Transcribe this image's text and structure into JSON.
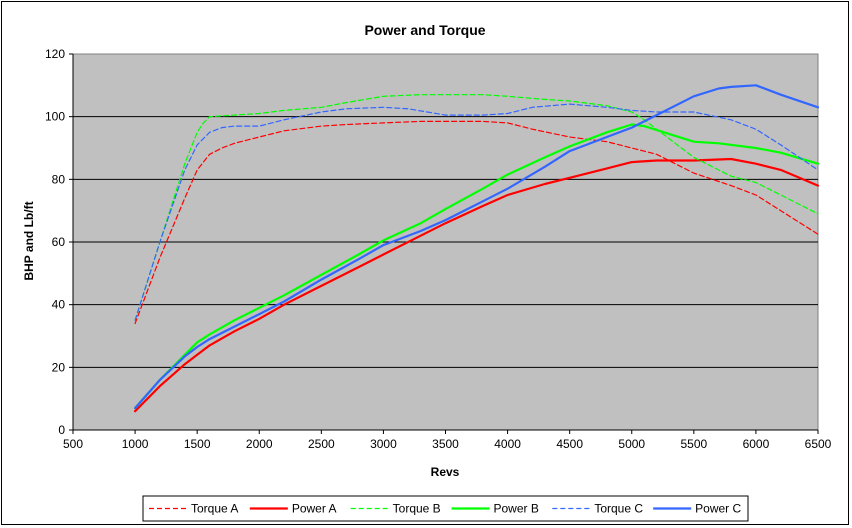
{
  "chart_data": {
    "type": "line",
    "title": "Power and Torque",
    "xlabel": "Revs",
    "ylabel": "BHP and Lb/ft",
    "xlim": [
      500,
      6500
    ],
    "ylim": [
      0,
      120
    ],
    "x_ticks": [
      500,
      1000,
      1500,
      2000,
      2500,
      3000,
      3500,
      4000,
      4500,
      5000,
      5500,
      6000,
      6500
    ],
    "y_ticks": [
      0,
      20,
      40,
      60,
      80,
      100,
      120
    ],
    "grid": "horizontal",
    "legend": "bottom",
    "plot_bg": "#c0c0c0",
    "series": [
      {
        "name": "Torque A",
        "color": "#ff0000",
        "dash": true,
        "x": [
          1000,
          1200,
          1400,
          1500,
          1600,
          1700,
          1800,
          2000,
          2200,
          2500,
          2700,
          3000,
          3300,
          3500,
          3800,
          4000,
          4200,
          4500,
          4800,
          5000,
          5200,
          5500,
          5800,
          6000,
          6200,
          6500
        ],
        "y": [
          34,
          55,
          74,
          83,
          88,
          90,
          91.5,
          93.5,
          95.5,
          97,
          97.5,
          98,
          98.5,
          98.5,
          98.5,
          98,
          96,
          93.5,
          92,
          90,
          88,
          82,
          78,
          75,
          70,
          62.5
        ]
      },
      {
        "name": "Power A",
        "color": "#ff0000",
        "dash": false,
        "x": [
          1000,
          1200,
          1400,
          1500,
          1600,
          1800,
          2000,
          2200,
          2500,
          2800,
          3000,
          3300,
          3500,
          3800,
          4000,
          4300,
          4500,
          4800,
          5000,
          5200,
          5500,
          5800,
          6000,
          6200,
          6500
        ],
        "y": [
          6,
          14,
          21,
          24,
          27,
          31.5,
          35.5,
          40,
          46,
          52,
          56,
          62,
          66,
          71.5,
          75,
          78.5,
          80.5,
          83.5,
          85.5,
          86,
          86,
          86.5,
          85,
          83,
          78
        ]
      },
      {
        "name": "Torque B",
        "color": "#00ff00",
        "dash": true,
        "x": [
          1000,
          1200,
          1400,
          1500,
          1550,
          1600,
          1800,
          2000,
          2200,
          2500,
          2700,
          3000,
          3300,
          3500,
          3800,
          4000,
          4300,
          4500,
          4800,
          5000,
          5100,
          5300,
          5500,
          5800,
          6000,
          6200,
          6500
        ],
        "y": [
          35,
          60,
          85,
          95,
          98,
          100,
          100.5,
          101,
          102,
          103,
          104.5,
          106.5,
          107,
          107,
          107,
          106.5,
          105.5,
          105,
          103.5,
          101.5,
          99,
          93,
          87,
          81,
          79,
          75,
          69
        ]
      },
      {
        "name": "Power B",
        "color": "#00ff00",
        "dash": false,
        "x": [
          1000,
          1200,
          1400,
          1500,
          1600,
          1800,
          2000,
          2200,
          2500,
          2800,
          3000,
          3300,
          3500,
          3800,
          4000,
          4300,
          4500,
          4800,
          5000,
          5100,
          5300,
          5500,
          5700,
          6000,
          6200,
          6500
        ],
        "y": [
          7,
          16,
          24,
          28,
          30.5,
          35,
          39,
          43,
          49.5,
          56,
          60.5,
          66,
          70.5,
          77,
          81.5,
          87,
          90.5,
          95,
          97.5,
          97,
          94.5,
          92,
          91.5,
          90,
          88.5,
          85
        ]
      },
      {
        "name": "Torque C",
        "color": "#3366ff",
        "dash": true,
        "x": [
          1000,
          1200,
          1400,
          1500,
          1600,
          1700,
          1800,
          2000,
          2200,
          2500,
          2700,
          3000,
          3200,
          3500,
          3800,
          4000,
          4200,
          4500,
          4800,
          5000,
          5200,
          5500,
          5800,
          6000,
          6200,
          6500
        ],
        "y": [
          35,
          60,
          83,
          91,
          95,
          96.5,
          97,
          97,
          99,
          101.5,
          102.5,
          103,
          102.5,
          100.5,
          100.5,
          101,
          103,
          104,
          103,
          102,
          101.5,
          101.5,
          99,
          96,
          91,
          83
        ]
      },
      {
        "name": "Power C",
        "color": "#3366ff",
        "dash": false,
        "x": [
          1000,
          1200,
          1400,
          1500,
          1600,
          1800,
          2000,
          2200,
          2500,
          2800,
          3000,
          3300,
          3500,
          3800,
          4000,
          4300,
          4500,
          4800,
          5000,
          5200,
          5500,
          5700,
          5800,
          6000,
          6200,
          6500
        ],
        "y": [
          7,
          16,
          23.5,
          26.5,
          29,
          33,
          37,
          41,
          48,
          54.5,
          59,
          63.5,
          67,
          73,
          77,
          84,
          89,
          93.5,
          96.5,
          100.5,
          106.5,
          109,
          109.5,
          110,
          107,
          103
        ]
      }
    ]
  }
}
